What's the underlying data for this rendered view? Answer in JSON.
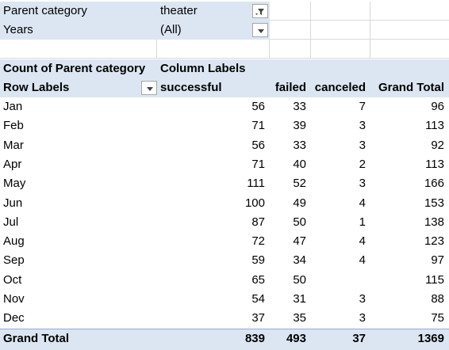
{
  "filters": [
    {
      "label": "Parent category",
      "value": "theater",
      "icon": "filter-applied-icon"
    },
    {
      "label": "Years",
      "value": "(All)",
      "icon": "chevron-down-icon"
    }
  ],
  "pivot": {
    "corner_label": "Count of Parent category",
    "column_labels_caption": "Column Labels",
    "row_labels_caption": "Row Labels",
    "columns": [
      "successful",
      "failed",
      "canceled",
      "Grand Total"
    ],
    "rows": [
      {
        "label": "Jan",
        "values": [
          "56",
          "33",
          "7",
          "96"
        ]
      },
      {
        "label": "Feb",
        "values": [
          "71",
          "39",
          "3",
          "113"
        ]
      },
      {
        "label": "Mar",
        "values": [
          "56",
          "33",
          "3",
          "92"
        ]
      },
      {
        "label": "Apr",
        "values": [
          "71",
          "40",
          "2",
          "113"
        ]
      },
      {
        "label": "May",
        "values": [
          "111",
          "52",
          "3",
          "166"
        ]
      },
      {
        "label": "Jun",
        "values": [
          "100",
          "49",
          "4",
          "153"
        ]
      },
      {
        "label": "Jul",
        "values": [
          "87",
          "50",
          "1",
          "138"
        ]
      },
      {
        "label": "Aug",
        "values": [
          "72",
          "47",
          "4",
          "123"
        ]
      },
      {
        "label": "Sep",
        "values": [
          "59",
          "34",
          "4",
          "97"
        ]
      },
      {
        "label": "Oct",
        "values": [
          "65",
          "50",
          "",
          "115"
        ]
      },
      {
        "label": "Nov",
        "values": [
          "54",
          "31",
          "3",
          "88"
        ]
      },
      {
        "label": "Dec",
        "values": [
          "37",
          "35",
          "3",
          "75"
        ]
      }
    ],
    "grand_total": {
      "label": "Grand Total",
      "values": [
        "839",
        "493",
        "37",
        "1369"
      ]
    }
  },
  "colors": {
    "band": "#dce6f2",
    "total_rule": "#8ea9db",
    "gridline": "#d9d9d9"
  }
}
